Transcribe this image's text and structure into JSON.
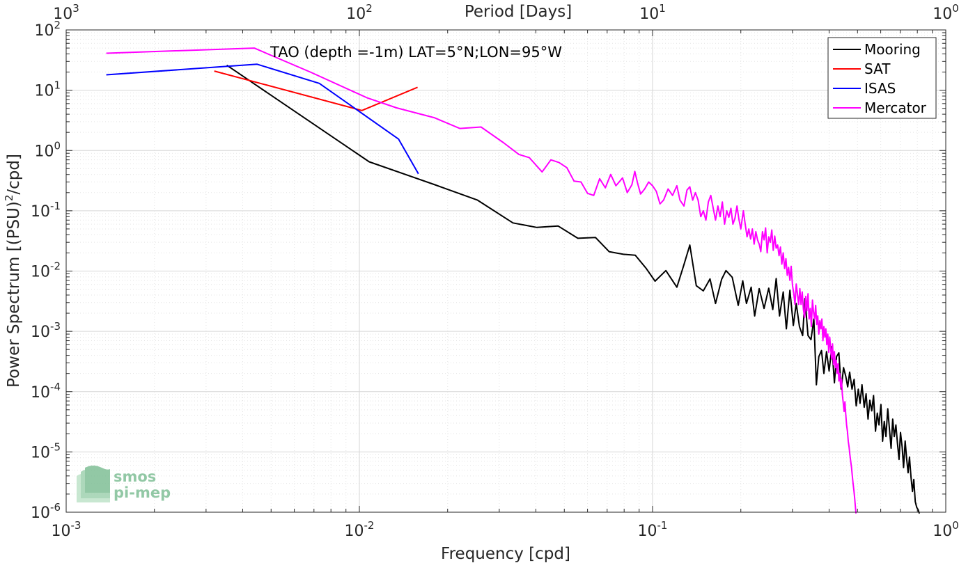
{
  "chart_data": {
    "type": "line",
    "title": "",
    "annotation": "TAO (depth =-1m) LAT=5°N;LON=95°W",
    "xlabel": "Frequency [cpd]",
    "x2label": "Period [Days]",
    "ylabel": "Power Spectrum [(PSU)",
    "ylabel_sup": "2",
    "ylabel_suffix": "/cpd]",
    "xscale": "log",
    "yscale": "log",
    "xlim": [
      0.001,
      1
    ],
    "ylim": [
      1e-06,
      100
    ],
    "grid": true,
    "legend_position": "top-right",
    "x_ticks": [
      {
        "base": "10",
        "exp": "-3",
        "value": 0.001
      },
      {
        "base": "10",
        "exp": "-2",
        "value": 0.01
      },
      {
        "base": "10",
        "exp": "-1",
        "value": 0.1
      },
      {
        "base": "10",
        "exp": "0",
        "value": 1
      }
    ],
    "x2_ticks": [
      {
        "base": "10",
        "exp": "3",
        "value": 0.001
      },
      {
        "base": "10",
        "exp": "2",
        "value": 0.01
      },
      {
        "base": "10",
        "exp": "1",
        "value": 0.1
      },
      {
        "base": "10",
        "exp": "0",
        "value": 1
      }
    ],
    "y_ticks": [
      {
        "base": "10",
        "exp": "2",
        "value": 100
      },
      {
        "base": "10",
        "exp": "1",
        "value": 10
      },
      {
        "base": "10",
        "exp": "0",
        "value": 1
      },
      {
        "base": "10",
        "exp": "-1",
        "value": 0.1
      },
      {
        "base": "10",
        "exp": "-2",
        "value": 0.01
      },
      {
        "base": "10",
        "exp": "-3",
        "value": 0.001
      },
      {
        "base": "10",
        "exp": "-4",
        "value": 0.0001
      },
      {
        "base": "10",
        "exp": "-5",
        "value": 1e-05
      },
      {
        "base": "10",
        "exp": "-6",
        "value": 1e-06
      }
    ],
    "series": [
      {
        "name": "Mooring",
        "color": "#000000",
        "points": [
          [
            0.00353,
            26
          ],
          [
            0.0108,
            0.65
          ],
          [
            0.0181,
            0.27
          ],
          [
            0.0253,
            0.15
          ],
          [
            0.0334,
            0.063
          ],
          [
            0.0403,
            0.053
          ],
          [
            0.0476,
            0.056
          ],
          [
            0.0556,
            0.035
          ],
          [
            0.0639,
            0.036
          ],
          [
            0.0711,
            0.021
          ],
          [
            0.0795,
            0.019
          ],
          [
            0.0873,
            0.0183
          ],
          [
            0.0952,
            0.011
          ],
          [
            0.102,
            0.0068
          ],
          [
            0.111,
            0.0102
          ],
          [
            0.121,
            0.0054
          ],
          [
            0.128,
            0.0128
          ],
          [
            0.134,
            0.027
          ],
          [
            0.141,
            0.0057
          ],
          [
            0.149,
            0.0047
          ],
          [
            0.157,
            0.0074
          ],
          [
            0.164,
            0.0029
          ],
          [
            0.172,
            0.0073
          ],
          [
            0.178,
            0.0102
          ],
          [
            0.187,
            0.0079
          ],
          [
            0.196,
            0.0027
          ],
          [
            0.203,
            0.0069
          ],
          [
            0.209,
            0.0029
          ],
          [
            0.217,
            0.0054
          ],
          [
            0.223,
            0.0018
          ],
          [
            0.231,
            0.0051
          ],
          [
            0.24,
            0.0024
          ],
          [
            0.249,
            0.0052
          ],
          [
            0.257,
            0.0023
          ],
          [
            0.264,
            0.0075
          ],
          [
            0.271,
            0.0018
          ],
          [
            0.279,
            0.0045
          ],
          [
            0.286,
            0.0011
          ],
          [
            0.294,
            0.0048
          ],
          [
            0.302,
            0.00125
          ],
          [
            0.309,
            0.0029
          ],
          [
            0.317,
            0.0012
          ],
          [
            0.325,
            0.00085
          ],
          [
            0.331,
            0.0035
          ],
          [
            0.339,
            0.00085
          ],
          [
            0.347,
            0.00073
          ],
          [
            0.355,
            0.0016
          ],
          [
            0.362,
            0.00013
          ],
          [
            0.369,
            0.00038
          ],
          [
            0.377,
            0.00048
          ],
          [
            0.384,
            0.0002
          ],
          [
            0.392,
            0.00046
          ],
          [
            0.4,
            0.00022
          ],
          [
            0.409,
            0.00056
          ],
          [
            0.417,
            0.00014
          ],
          [
            0.424,
            0.00038
          ],
          [
            0.432,
            0.00044
          ],
          [
            0.44,
            0.00011
          ],
          [
            0.448,
            0.00025
          ],
          [
            0.456,
            0.00018
          ],
          [
            0.463,
            0.00012
          ],
          [
            0.47,
            0.00021
          ],
          [
            0.479,
            0.00011
          ],
          [
            0.487,
            0.00016
          ],
          [
            0.495,
            5.8e-05
          ],
          [
            0.503,
            0.00011
          ],
          [
            0.51,
            6.4e-05
          ],
          [
            0.518,
            0.00013
          ],
          [
            0.527,
            5.5e-05
          ],
          [
            0.535,
            9.2e-05
          ],
          [
            0.543,
            3.5e-05
          ],
          [
            0.551,
            7.2e-05
          ],
          [
            0.559,
            4.8e-05
          ],
          [
            0.567,
            8.6e-05
          ],
          [
            0.576,
            2.2e-05
          ],
          [
            0.584,
            4.4e-05
          ],
          [
            0.592,
            2.8e-05
          ],
          [
            0.601,
            6.1e-05
          ],
          [
            0.609,
            1.5e-05
          ],
          [
            0.617,
            3.2e-05
          ],
          [
            0.625,
            1.8e-05
          ],
          [
            0.634,
            5.2e-05
          ],
          [
            0.642,
            2.5e-05
          ],
          [
            0.651,
            1.15e-05
          ],
          [
            0.659,
            3.5e-05
          ],
          [
            0.667,
            1.8e-05
          ],
          [
            0.676,
            2.8e-05
          ],
          [
            0.684,
            1.4e-05
          ],
          [
            0.693,
            7.5e-06
          ],
          [
            0.701,
            2.1e-05
          ],
          [
            0.71,
            1.2e-05
          ],
          [
            0.718,
            5.5e-06
          ],
          [
            0.727,
            1.52e-05
          ],
          [
            0.735,
            8e-06
          ],
          [
            0.744,
            4.5e-06
          ],
          [
            0.752,
            8.2e-06
          ],
          [
            0.761,
            3.8e-06
          ],
          [
            0.77,
            2.2e-06
          ],
          [
            0.778,
            3.5e-06
          ],
          [
            0.787,
            1.5e-06
          ],
          [
            0.796,
            1.2e-06
          ],
          [
            0.805,
            1.1e-06
          ],
          [
            0.813,
            9.5e-07
          ]
        ]
      },
      {
        "name": "SAT",
        "color": "#ff0000",
        "points": [
          [
            0.0032,
            20.8
          ],
          [
            0.0102,
            4.6
          ],
          [
            0.0158,
            11.2
          ]
        ]
      },
      {
        "name": "ISAS",
        "color": "#0000ff",
        "points": [
          [
            0.00137,
            18
          ],
          [
            0.00448,
            27
          ],
          [
            0.0073,
            13
          ],
          [
            0.0136,
            1.55
          ],
          [
            0.0159,
            0.41
          ]
        ]
      },
      {
        "name": "Mercator",
        "color": "#ff00ff",
        "points": [
          [
            0.00137,
            41
          ],
          [
            0.00438,
            50
          ],
          [
            0.0068,
            20
          ],
          [
            0.0106,
            7.5
          ],
          [
            0.0134,
            5.1
          ],
          [
            0.018,
            3.5
          ],
          [
            0.022,
            2.32
          ],
          [
            0.026,
            2.45
          ],
          [
            0.031,
            1.35
          ],
          [
            0.035,
            0.86
          ],
          [
            0.038,
            0.76
          ],
          [
            0.042,
            0.44
          ],
          [
            0.045,
            0.7
          ],
          [
            0.048,
            0.63
          ],
          [
            0.051,
            0.52
          ],
          [
            0.054,
            0.31
          ],
          [
            0.057,
            0.3
          ],
          [
            0.06,
            0.195
          ],
          [
            0.063,
            0.18
          ],
          [
            0.066,
            0.34
          ],
          [
            0.069,
            0.24
          ],
          [
            0.072,
            0.4
          ],
          [
            0.075,
            0.26
          ],
          [
            0.079,
            0.35
          ],
          [
            0.082,
            0.2
          ],
          [
            0.085,
            0.27
          ],
          [
            0.087,
            0.45
          ],
          [
            0.089,
            0.28
          ],
          [
            0.091,
            0.19
          ],
          [
            0.094,
            0.23
          ],
          [
            0.097,
            0.3
          ],
          [
            0.1,
            0.26
          ],
          [
            0.103,
            0.21
          ],
          [
            0.106,
            0.13
          ],
          [
            0.109,
            0.15
          ],
          [
            0.113,
            0.23
          ],
          [
            0.117,
            0.18
          ],
          [
            0.121,
            0.26
          ],
          [
            0.124,
            0.15
          ],
          [
            0.128,
            0.12
          ],
          [
            0.131,
            0.22
          ],
          [
            0.134,
            0.25
          ],
          [
            0.137,
            0.15
          ],
          [
            0.14,
            0.2
          ],
          [
            0.143,
            0.15
          ],
          [
            0.146,
            0.08
          ],
          [
            0.149,
            0.1
          ],
          [
            0.152,
            0.07
          ],
          [
            0.155,
            0.14
          ],
          [
            0.158,
            0.18
          ],
          [
            0.161,
            0.11
          ],
          [
            0.164,
            0.07
          ],
          [
            0.167,
            0.12
          ],
          [
            0.17,
            0.08
          ],
          [
            0.173,
            0.14
          ],
          [
            0.176,
            0.06
          ],
          [
            0.179,
            0.1
          ],
          [
            0.182,
            0.078
          ],
          [
            0.185,
            0.11
          ],
          [
            0.188,
            0.06
          ],
          [
            0.191,
            0.075
          ],
          [
            0.194,
            0.12
          ],
          [
            0.197,
            0.072
          ],
          [
            0.2,
            0.05
          ],
          [
            0.204,
            0.1
          ],
          [
            0.207,
            0.06
          ],
          [
            0.21,
            0.037
          ],
          [
            0.213,
            0.05
          ],
          [
            0.216,
            0.034
          ],
          [
            0.219,
            0.05
          ],
          [
            0.222,
            0.028
          ],
          [
            0.225,
            0.045
          ],
          [
            0.228,
            0.033
          ],
          [
            0.231,
            0.028
          ],
          [
            0.234,
            0.021
          ],
          [
            0.237,
            0.045
          ],
          [
            0.24,
            0.033
          ],
          [
            0.243,
            0.052
          ],
          [
            0.246,
            0.02
          ],
          [
            0.249,
            0.037
          ],
          [
            0.252,
            0.03
          ],
          [
            0.255,
            0.048
          ],
          [
            0.258,
            0.022
          ],
          [
            0.261,
            0.038
          ],
          [
            0.264,
            0.024
          ],
          [
            0.267,
            0.027
          ],
          [
            0.27,
            0.018
          ],
          [
            0.273,
            0.025
          ],
          [
            0.276,
            0.013
          ],
          [
            0.279,
            0.02
          ],
          [
            0.282,
            0.011
          ],
          [
            0.285,
            0.016
          ],
          [
            0.288,
            0.0085
          ],
          [
            0.291,
            0.0115
          ],
          [
            0.294,
            0.007
          ],
          [
            0.297,
            0.012
          ],
          [
            0.3,
            0.0058
          ],
          [
            0.303,
            0.0043
          ],
          [
            0.306,
            0.0028
          ],
          [
            0.309,
            0.0061
          ],
          [
            0.312,
            0.0042
          ],
          [
            0.315,
            0.0028
          ],
          [
            0.318,
            0.0051
          ],
          [
            0.321,
            0.0028
          ],
          [
            0.324,
            0.0045
          ],
          [
            0.327,
            0.0023
          ],
          [
            0.33,
            0.0017
          ],
          [
            0.333,
            0.0038
          ],
          [
            0.336,
            0.0022
          ],
          [
            0.339,
            0.0042
          ],
          [
            0.342,
            0.0016
          ],
          [
            0.345,
            0.0024
          ],
          [
            0.348,
            0.0012
          ],
          [
            0.351,
            0.0033
          ],
          [
            0.354,
            0.0021
          ],
          [
            0.357,
            0.0016
          ],
          [
            0.36,
            0.0027
          ],
          [
            0.363,
            0.0013
          ],
          [
            0.366,
            0.0018
          ],
          [
            0.369,
            0.0009
          ],
          [
            0.372,
            0.0015
          ],
          [
            0.375,
            0.0011
          ],
          [
            0.378,
            0.0016
          ],
          [
            0.381,
            0.0007
          ],
          [
            0.384,
            0.0012
          ],
          [
            0.387,
            0.0008
          ],
          [
            0.39,
            0.0011
          ],
          [
            0.393,
            0.0006
          ],
          [
            0.396,
            0.0009
          ],
          [
            0.399,
            0.00045
          ],
          [
            0.402,
            0.0008
          ],
          [
            0.405,
            0.00053
          ],
          [
            0.408,
            0.00035
          ],
          [
            0.411,
            0.00062
          ],
          [
            0.414,
            0.00028
          ],
          [
            0.417,
            0.00046
          ],
          [
            0.42,
            0.00025
          ],
          [
            0.423,
            0.00033
          ],
          [
            0.426,
            0.0002
          ],
          [
            0.429,
            0.00029
          ],
          [
            0.432,
            0.00015
          ],
          [
            0.435,
            0.0002
          ],
          [
            0.438,
            0.00012
          ],
          [
            0.441,
            0.00016
          ],
          [
            0.444,
            9e-05
          ],
          [
            0.447,
            6.5e-05
          ],
          [
            0.45,
            4.7e-05
          ],
          [
            0.453,
            6.8e-05
          ],
          [
            0.456,
            4.2e-05
          ],
          [
            0.459,
            2.8e-05
          ],
          [
            0.462,
            2.2e-05
          ],
          [
            0.465,
            1.5e-05
          ],
          [
            0.468,
            1.2e-05
          ],
          [
            0.471,
            9e-06
          ],
          [
            0.474,
            7e-06
          ],
          [
            0.477,
            5.5e-06
          ],
          [
            0.48,
            4e-06
          ],
          [
            0.483,
            3e-06
          ],
          [
            0.486,
            2.3e-06
          ],
          [
            0.489,
            1.7e-06
          ],
          [
            0.492,
            1.2e-06
          ],
          [
            0.494,
            9.5e-07
          ]
        ]
      }
    ],
    "watermark": {
      "line1": "smos",
      "line2": "pi-mep"
    }
  }
}
